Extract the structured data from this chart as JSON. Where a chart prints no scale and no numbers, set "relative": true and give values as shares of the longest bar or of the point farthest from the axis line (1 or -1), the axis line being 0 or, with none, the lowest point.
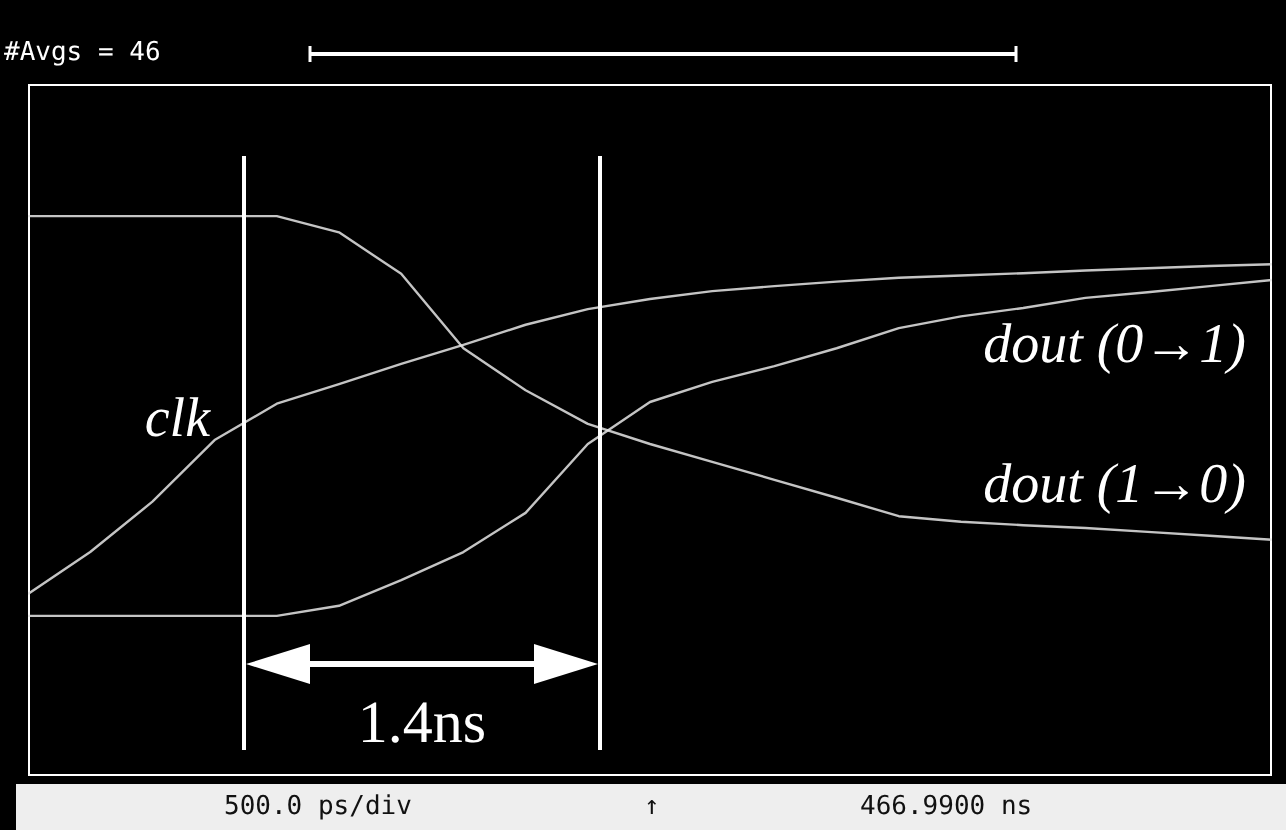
{
  "chart_data": {
    "type": "line",
    "relative": true,
    "categories": [
      null,
      null,
      null,
      null,
      null,
      null,
      null,
      null,
      null,
      null,
      null,
      null,
      null,
      null,
      null,
      null,
      null,
      null,
      null,
      null,
      null
    ],
    "series": [
      {
        "name": "clk",
        "color": "#e6e6e6",
        "values": [
          0.325,
          0.4,
          0.49,
          0.6,
          0.665,
          0.7,
          0.736,
          0.77,
          0.806,
          0.834,
          0.852,
          0.866,
          0.875,
          0.883,
          0.89,
          0.894,
          0.898,
          0.903,
          0.907,
          0.911,
          0.914
        ]
      },
      {
        "name": "dout (0→1)",
        "color": "#e6e6e6",
        "values": [
          0.286,
          0.286,
          0.286,
          0.286,
          0.286,
          0.304,
          0.35,
          0.4,
          0.47,
          0.593,
          0.668,
          0.704,
          0.732,
          0.764,
          0.8,
          0.821,
          0.836,
          0.854,
          0.864,
          0.875,
          0.886
        ]
      },
      {
        "name": "dout (1→0)",
        "color": "#e6e6e6",
        "values": [
          1,
          1,
          1,
          1,
          1,
          0.971,
          0.897,
          0.764,
          0.689,
          0.629,
          0.593,
          0.561,
          0.529,
          0.497,
          0.464,
          0.454,
          0.448,
          0.443,
          0.436,
          0.429,
          0.422
        ]
      }
    ],
    "annotations": [
      "#Avgs = 46",
      "500.0 ps/div",
      "↑",
      "466.9900 ns",
      "1.4ns"
    ]
  }
}
